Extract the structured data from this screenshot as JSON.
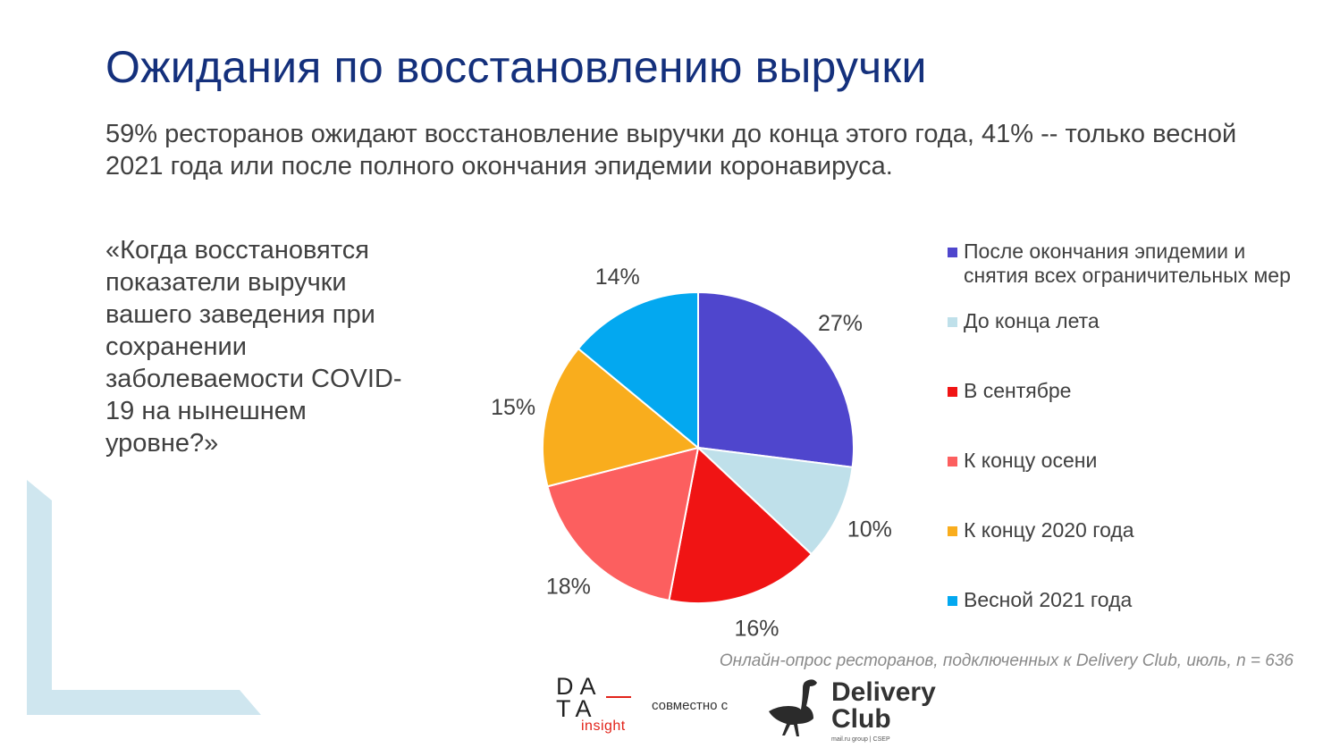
{
  "slide": {
    "title": "Ожидания по восстановлению выручки",
    "subtitle": "59% ресторанов ожидают восстановление выручки до конца этого года, 41% -- только весной 2021 года или после полного окончания эпидемии коронавируса.",
    "question": "«Когда восстановятся показатели выручки вашего заведения при сохранении заболеваемости COVID-19 на нынешнем уровне?»",
    "source": "Онлайн-опрос ресторанов, подключенных к Delivery Club, июль, n = 636"
  },
  "footer": {
    "data_logo_row1": "DA",
    "data_logo_row2": "TA",
    "data_logo_sub": "insight",
    "together": "совместно с",
    "dc_line1": "Delivery",
    "dc_line2": "Club",
    "dc_small": "mail.ru group | CSEP",
    "accent_red": "#e2231a"
  },
  "chart_data": {
    "type": "pie",
    "title": "",
    "start_angle_deg": 0,
    "direction": "clockwise",
    "legend_position": "right",
    "slices": [
      {
        "label": "После окончания эпидемии и снятия всех ограничительных мер",
        "value": 27,
        "display": "27%",
        "color": "#4f46cd"
      },
      {
        "label": "До конца лета",
        "value": 10,
        "display": "10%",
        "color": "#bfe0ea"
      },
      {
        "label": "В сентябре",
        "value": 16,
        "display": "16%",
        "color": "#f01414"
      },
      {
        "label": "К концу осени",
        "value": 18,
        "display": "18%",
        "color": "#fc5f5f"
      },
      {
        "label": "К концу 2020 года",
        "value": 15,
        "display": "15%",
        "color": "#f9ad1d"
      },
      {
        "label": "Весной 2021 года",
        "value": 14,
        "display": "14%",
        "color": "#03a8f0"
      }
    ]
  }
}
